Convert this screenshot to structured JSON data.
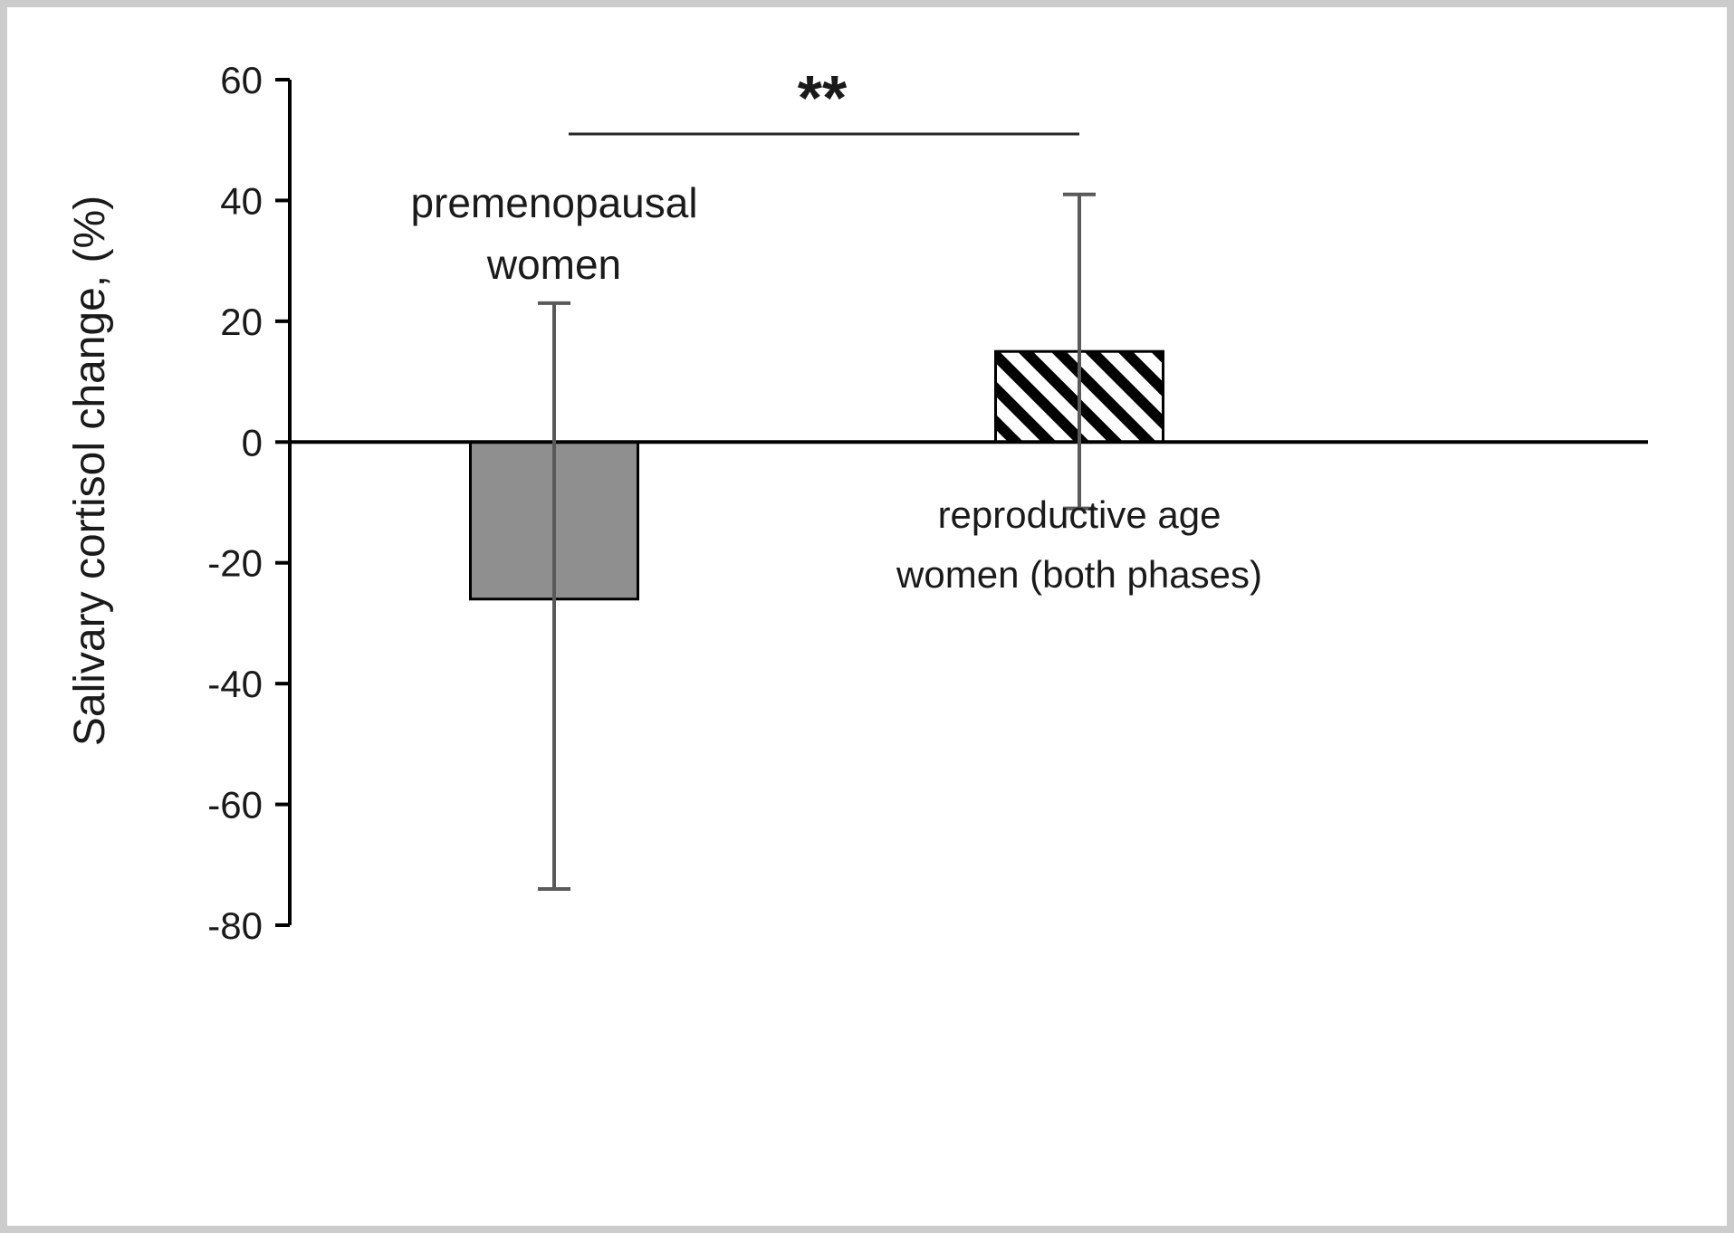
{
  "chart_data": {
    "type": "bar",
    "title": "",
    "xlabel": "",
    "ylabel": "Salivary cortisol change, (%)",
    "ylim": [
      -80,
      60
    ],
    "yticks": [
      60,
      40,
      20,
      0,
      -20,
      -40,
      -60,
      -80
    ],
    "grid": false,
    "legend": false,
    "categories": [
      "premenopausal women",
      "reproductive age women (both phases)"
    ],
    "bars": [
      {
        "category": "premenopausal women",
        "label_lines": [
          "premenopausal",
          "women"
        ],
        "value": -26,
        "error_top": 23,
        "error_bottom": -74,
        "fill_style": "solid"
      },
      {
        "category": "reproductive age women (both phases)",
        "label_lines": [
          "reproductive age",
          "women (both phases)"
        ],
        "value": 15,
        "error_top": 41,
        "error_bottom": -11,
        "fill_style": "diagonal-hatch"
      }
    ],
    "significance": {
      "label": "**",
      "between": [
        "premenopausal women",
        "reproductive age women (both phases)"
      ]
    },
    "colors": {
      "bar_solid_fill": "#8f8f8f",
      "bar_stroke": "#000000",
      "hatch_stroke": "#000000",
      "error_bar": "#595959",
      "axis": "#000000",
      "significance_line": "#262626",
      "text": "#1a1a1a",
      "frame_border": "#cccccc",
      "background": "#ffffff"
    }
  }
}
